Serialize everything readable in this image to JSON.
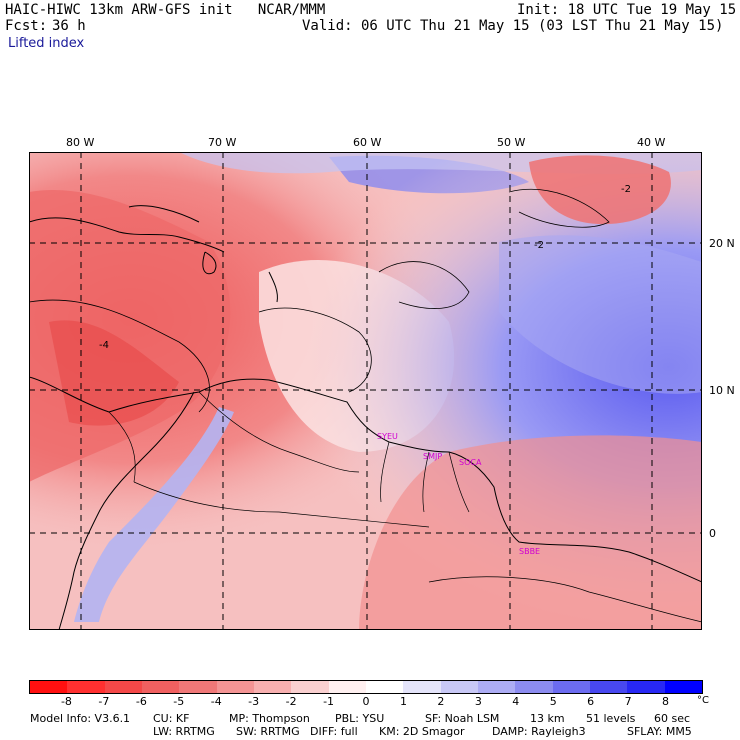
{
  "header": {
    "title_left": "HAIC-HIWC 13km ARW-GFS init   NCAR/MMM",
    "init": "Init: 18 UTC Tue 19 May 15",
    "fcst_label": "Fcst:",
    "fcst_value": "36 h",
    "valid": "Valid: 06 UTC Thu 21 May 15 (03 LST Thu 21 May 15)",
    "field": "Lifted index"
  },
  "longitude_labels": [
    "80 W",
    "70 W",
    "60 W",
    "50 W",
    "40 W"
  ],
  "latitude_labels": [
    "20 N",
    "10 N",
    "0"
  ],
  "cities": [
    "SYEU",
    "SMJP",
    "SOCA",
    "SBBE"
  ],
  "contour_labels": [
    "-2",
    "-4",
    "-2"
  ],
  "colorbar": {
    "ticks": [
      "-8",
      "-7",
      "-6",
      "-5",
      "-4",
      "-3",
      "-2",
      "-1",
      "0",
      "1",
      "2",
      "3",
      "4",
      "5",
      "6",
      "7",
      "8"
    ],
    "unit": "°C",
    "colors": [
      "#ff1010",
      "#ff3030",
      "#f44848",
      "#f06060",
      "#f07878",
      "#f49494",
      "#f8b0b0",
      "#fad0d0",
      "#fff0f0",
      "#ffffff",
      "#e4e4fa",
      "#c8c8f6",
      "#acacf4",
      "#8c8cf0",
      "#6c6cf0",
      "#4848f0",
      "#2828f4",
      "#0000ff"
    ]
  },
  "footer": {
    "line1": [
      "Model Info: V3.6.1",
      "CU: KF",
      "MP: Thompson",
      "PBL: YSU",
      "SF: Noah LSM",
      "13 km",
      "51 levels",
      "60 sec"
    ],
    "line2": [
      "LW: RRTMG",
      "SW: RRTMG",
      "DIFF: full",
      "KM: 2D Smagor",
      "DAMP: Rayleigh3",
      "SFLAY: MM5"
    ]
  }
}
